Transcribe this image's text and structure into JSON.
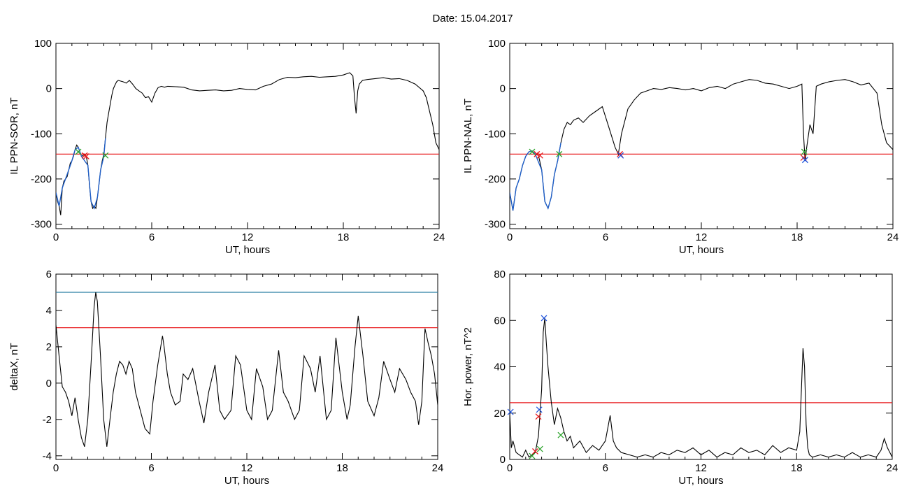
{
  "figure": {
    "title": "Date:  15.04.2017"
  },
  "colors": {
    "series": "#000000",
    "threshold_red": "#e8191c",
    "threshold_blue": "#2a7fa4",
    "highlight_blue": "#1f5fc8",
    "marker_red": "#e8191c",
    "marker_green": "#2ea52e",
    "marker_blue": "#2255dd"
  },
  "chart_data": [
    {
      "type": "line",
      "ylabel": "IL PPN-SOR, nT",
      "xlabel": "UT, hours",
      "xlim": [
        0,
        24
      ],
      "ylim": [
        -310,
        100
      ],
      "xticks": [
        0,
        6,
        12,
        18,
        24
      ],
      "yticks": [
        100,
        0,
        -100,
        -200,
        -300
      ],
      "threshold_red": -145,
      "series": [
        {
          "color": "#000000",
          "x": [
            0,
            0.1,
            0.2,
            0.3,
            0.4,
            0.5,
            0.6,
            0.7,
            0.8,
            0.9,
            1.0,
            1.1,
            1.2,
            1.3,
            1.4,
            1.5,
            1.6,
            1.7,
            1.8,
            1.9,
            2.0,
            2.1,
            2.2,
            2.3,
            2.4,
            2.5,
            2.6,
            2.7,
            2.8,
            2.9,
            3.0,
            3.1,
            3.2,
            3.3,
            3.4,
            3.5,
            3.6,
            3.7,
            3.8,
            3.9,
            4.0,
            4.2,
            4.4,
            4.6,
            4.8,
            5.0,
            5.2,
            5.4,
            5.6,
            5.8,
            6.0,
            6.2,
            6.4,
            6.6,
            6.8,
            7.0,
            7.5,
            8.0,
            8.5,
            9.0,
            9.5,
            10.0,
            10.5,
            11.0,
            11.5,
            12.0,
            12.5,
            13.0,
            13.5,
            14.0,
            14.5,
            15.0,
            15.5,
            16.0,
            16.5,
            17.0,
            17.5,
            18.0,
            18.4,
            18.6,
            18.7,
            18.8,
            18.9,
            19.0,
            19.2,
            19.5,
            20.0,
            20.5,
            21.0,
            21.5,
            22.0,
            22.5,
            23.0,
            23.2,
            23.4,
            23.6,
            23.8,
            24.0
          ],
          "y": [
            -230,
            -250,
            -260,
            -280,
            -220,
            -205,
            -200,
            -195,
            -180,
            -165,
            -160,
            -150,
            -135,
            -125,
            -130,
            -140,
            -150,
            -148,
            -145,
            -150,
            -170,
            -215,
            -250,
            -265,
            -260,
            -265,
            -240,
            -210,
            -180,
            -160,
            -145,
            -110,
            -75,
            -55,
            -35,
            -15,
            0,
            8,
            15,
            18,
            17,
            15,
            12,
            18,
            10,
            0,
            -5,
            -10,
            -20,
            -18,
            -30,
            -10,
            2,
            5,
            3,
            5,
            4,
            3,
            -3,
            -5,
            -4,
            -3,
            -5,
            -4,
            0,
            -2,
            -3,
            5,
            10,
            20,
            25,
            24,
            26,
            27,
            25,
            26,
            27,
            30,
            35,
            28,
            -20,
            -55,
            -5,
            10,
            18,
            20,
            22,
            24,
            21,
            22,
            18,
            10,
            -5,
            -20,
            -50,
            -80,
            -120,
            -135
          ]
        },
        {
          "color": "#1f5fc8",
          "x": [
            0,
            0.2,
            0.4,
            0.6,
            0.8,
            1.0,
            1.2,
            1.4,
            1.6,
            2.0,
            2.2,
            2.4,
            2.6,
            2.8,
            3.0,
            3.1
          ],
          "y": [
            -230,
            -260,
            -220,
            -200,
            -180,
            -160,
            -135,
            -130,
            -150,
            -170,
            -250,
            -265,
            -240,
            -180,
            -150,
            -110
          ]
        }
      ],
      "markers": [
        {
          "x": 1.4,
          "y": -140,
          "color": "#2ea52e"
        },
        {
          "x": 1.8,
          "y": -148,
          "color": "#e8191c"
        },
        {
          "x": 1.9,
          "y": -150,
          "color": "#e8191c"
        },
        {
          "x": 3.1,
          "y": -148,
          "color": "#2ea52e"
        }
      ]
    },
    {
      "type": "line",
      "ylabel": "IL PPN-NAL, nT",
      "xlabel": "UT, hours",
      "xlim": [
        0,
        24
      ],
      "ylim": [
        -310,
        100
      ],
      "xticks": [
        0,
        6,
        12,
        18,
        24
      ],
      "yticks": [
        100,
        0,
        -100,
        -200,
        -300
      ],
      "threshold_red": -145,
      "series": [
        {
          "color": "#000000",
          "x": [
            0,
            0.2,
            0.4,
            0.6,
            0.8,
            1.0,
            1.2,
            1.4,
            1.6,
            1.8,
            2.0,
            2.2,
            2.4,
            2.6,
            2.8,
            3.0,
            3.2,
            3.4,
            3.6,
            3.8,
            4.0,
            4.3,
            4.6,
            5.0,
            5.4,
            5.8,
            6.2,
            6.6,
            6.8,
            7.0,
            7.4,
            7.8,
            8.2,
            8.6,
            9.0,
            9.5,
            10.0,
            10.5,
            11.0,
            11.5,
            12.0,
            12.5,
            13.0,
            13.5,
            14.0,
            14.5,
            15.0,
            15.5,
            16.0,
            16.5,
            17.0,
            17.5,
            18.0,
            18.3,
            18.4,
            18.5,
            18.6,
            18.8,
            19.0,
            19.2,
            19.5,
            20.0,
            20.5,
            21.0,
            21.5,
            22.0,
            22.5,
            23.0,
            23.3,
            23.6,
            24.0
          ],
          "y": [
            -230,
            -270,
            -220,
            -200,
            -170,
            -150,
            -140,
            -138,
            -145,
            -148,
            -180,
            -250,
            -265,
            -240,
            -190,
            -160,
            -120,
            -90,
            -75,
            -80,
            -70,
            -65,
            -75,
            -60,
            -50,
            -40,
            -85,
            -130,
            -145,
            -100,
            -45,
            -25,
            -10,
            -5,
            0,
            -2,
            2,
            0,
            -3,
            0,
            -5,
            2,
            5,
            0,
            10,
            15,
            20,
            18,
            12,
            10,
            5,
            0,
            5,
            10,
            -100,
            -160,
            -130,
            -80,
            -100,
            5,
            10,
            15,
            18,
            20,
            15,
            8,
            12,
            -10,
            -80,
            -120,
            -135
          ]
        },
        {
          "color": "#1f5fc8",
          "x": [
            0,
            0.2,
            0.4,
            0.6,
            0.8,
            1.0,
            1.2,
            1.4,
            1.6,
            2.0,
            2.2,
            2.4,
            2.6,
            2.8,
            3.0,
            3.2
          ],
          "y": [
            -230,
            -270,
            -220,
            -200,
            -170,
            -150,
            -140,
            -138,
            -145,
            -180,
            -250,
            -265,
            -240,
            -190,
            -160,
            -120
          ]
        }
      ],
      "markers": [
        {
          "x": 1.4,
          "y": -140,
          "color": "#2ea52e"
        },
        {
          "x": 1.7,
          "y": -145,
          "color": "#e8191c"
        },
        {
          "x": 1.9,
          "y": -148,
          "color": "#e8191c"
        },
        {
          "x": 3.1,
          "y": -145,
          "color": "#2ea52e"
        },
        {
          "x": 6.9,
          "y": -145,
          "color": "#e8191c"
        },
        {
          "x": 6.95,
          "y": -148,
          "color": "#2255dd"
        },
        {
          "x": 18.45,
          "y": -140,
          "color": "#2ea52e"
        },
        {
          "x": 18.4,
          "y": -153,
          "color": "#e8191c"
        },
        {
          "x": 18.5,
          "y": -158,
          "color": "#2255dd"
        }
      ]
    },
    {
      "type": "line",
      "ylabel": "deltaX, nT",
      "xlabel": "UT, hours",
      "xlim": [
        0,
        24
      ],
      "ylim": [
        -4.2,
        6
      ],
      "xticks": [
        0,
        6,
        12,
        18,
        24
      ],
      "yticks": [
        6,
        4,
        2,
        0,
        -2,
        -4
      ],
      "threshold_red": 3.05,
      "threshold_blue": 5.0,
      "series": [
        {
          "color": "#000000",
          "x": [
            0,
            0.2,
            0.4,
            0.6,
            0.8,
            1.0,
            1.2,
            1.4,
            1.6,
            1.8,
            2.0,
            2.2,
            2.4,
            2.5,
            2.6,
            2.8,
            3.0,
            3.2,
            3.4,
            3.6,
            3.8,
            4.0,
            4.2,
            4.4,
            4.6,
            4.8,
            5.0,
            5.3,
            5.6,
            5.9,
            6.1,
            6.4,
            6.7,
            6.8,
            7.0,
            7.2,
            7.5,
            7.8,
            8.0,
            8.3,
            8.6,
            9.0,
            9.3,
            9.6,
            10.0,
            10.3,
            10.6,
            11.0,
            11.3,
            11.6,
            12.0,
            12.3,
            12.6,
            13.0,
            13.3,
            13.6,
            14.0,
            14.3,
            14.6,
            15.0,
            15.3,
            15.6,
            16.0,
            16.3,
            16.6,
            17.0,
            17.3,
            17.6,
            18.0,
            18.3,
            18.5,
            18.8,
            19.0,
            19.3,
            19.6,
            20.0,
            20.3,
            20.6,
            21.0,
            21.3,
            21.6,
            22.0,
            22.3,
            22.6,
            22.8,
            23.0,
            23.2,
            23.4,
            23.6,
            23.8,
            24.0
          ],
          "y": [
            3.2,
            1.5,
            -0.2,
            -0.5,
            -1.0,
            -1.8,
            -0.8,
            -2.0,
            -3.0,
            -3.5,
            -2.0,
            1.0,
            4.2,
            5.0,
            4.5,
            1.5,
            -2.0,
            -3.5,
            -2.0,
            -0.5,
            0.5,
            1.2,
            1.0,
            0.5,
            1.2,
            0.8,
            -0.5,
            -1.5,
            -2.5,
            -2.8,
            -1.0,
            1.0,
            2.6,
            2.0,
            0.5,
            -0.5,
            -1.2,
            -1.0,
            0.5,
            0.2,
            0.8,
            -1.0,
            -2.2,
            -0.5,
            1.0,
            -1.5,
            -2.0,
            -1.5,
            1.5,
            1.0,
            -1.5,
            -2.0,
            0.8,
            -0.2,
            -2.0,
            -1.5,
            1.8,
            -0.5,
            -1.0,
            -2.0,
            -1.5,
            1.5,
            0.8,
            -0.5,
            1.5,
            -2.0,
            -1.5,
            2.5,
            -0.5,
            -2.0,
            -1.2,
            2.0,
            3.7,
            1.5,
            -1.0,
            -1.8,
            -0.8,
            1.2,
            0.2,
            -0.5,
            0.8,
            0.2,
            -0.5,
            -1.0,
            -2.3,
            -1.0,
            3.0,
            2.2,
            1.5,
            0.5,
            -1.2
          ]
        }
      ],
      "markers": []
    },
    {
      "type": "line",
      "ylabel": "Hor. power, nT^2",
      "xlabel": "UT, hours",
      "xlim": [
        0,
        24
      ],
      "ylim": [
        0,
        80
      ],
      "xticks": [
        0,
        6,
        12,
        18,
        24
      ],
      "yticks": [
        80,
        60,
        40,
        20,
        0
      ],
      "threshold_red": 24.5,
      "series": [
        {
          "color": "#000000",
          "x": [
            0,
            0.1,
            0.2,
            0.4,
            0.6,
            0.8,
            1.0,
            1.2,
            1.4,
            1.6,
            1.8,
            1.9,
            2.0,
            2.1,
            2.2,
            2.3,
            2.4,
            2.6,
            2.8,
            3.0,
            3.2,
            3.4,
            3.6,
            3.8,
            4.0,
            4.4,
            4.8,
            5.2,
            5.6,
            6.0,
            6.3,
            6.5,
            6.7,
            7.0,
            7.5,
            8.0,
            8.5,
            9.0,
            9.5,
            10.0,
            10.5,
            11.0,
            11.5,
            12.0,
            12.5,
            13.0,
            13.5,
            14.0,
            14.5,
            15.0,
            15.5,
            16.0,
            16.5,
            17.0,
            17.5,
            18.0,
            18.2,
            18.3,
            18.4,
            18.5,
            18.6,
            18.7,
            18.8,
            19.0,
            19.5,
            20.0,
            20.5,
            21.0,
            21.5,
            22.0,
            22.5,
            23.0,
            23.3,
            23.5,
            23.7,
            24.0
          ],
          "y": [
            20,
            5,
            8,
            3,
            2,
            1,
            4,
            1,
            2,
            3,
            10,
            20,
            30,
            55,
            61,
            50,
            40,
            25,
            15,
            22,
            18,
            12,
            8,
            10,
            5,
            8,
            3,
            6,
            4,
            8,
            19,
            8,
            5,
            3,
            2,
            1,
            2,
            1,
            3,
            2,
            4,
            3,
            5,
            2,
            4,
            1,
            3,
            2,
            5,
            3,
            4,
            2,
            6,
            3,
            5,
            4,
            12,
            30,
            48,
            40,
            15,
            5,
            2,
            1,
            2,
            1,
            2,
            1,
            3,
            1,
            2,
            1,
            4,
            9,
            5,
            1
          ]
        }
      ],
      "markers": [
        {
          "x": 0.05,
          "y": 20.5,
          "color": "#2255dd"
        },
        {
          "x": 1.4,
          "y": 1.5,
          "color": "#2ea52e"
        },
        {
          "x": 1.6,
          "y": 3.5,
          "color": "#e8191c"
        },
        {
          "x": 1.8,
          "y": 18.5,
          "color": "#e8191c"
        },
        {
          "x": 1.85,
          "y": 21.5,
          "color": "#2255dd"
        },
        {
          "x": 1.9,
          "y": 4.5,
          "color": "#2ea52e"
        },
        {
          "x": 2.15,
          "y": 61,
          "color": "#2255dd"
        },
        {
          "x": 3.2,
          "y": 10.5,
          "color": "#2ea52e"
        }
      ]
    }
  ]
}
